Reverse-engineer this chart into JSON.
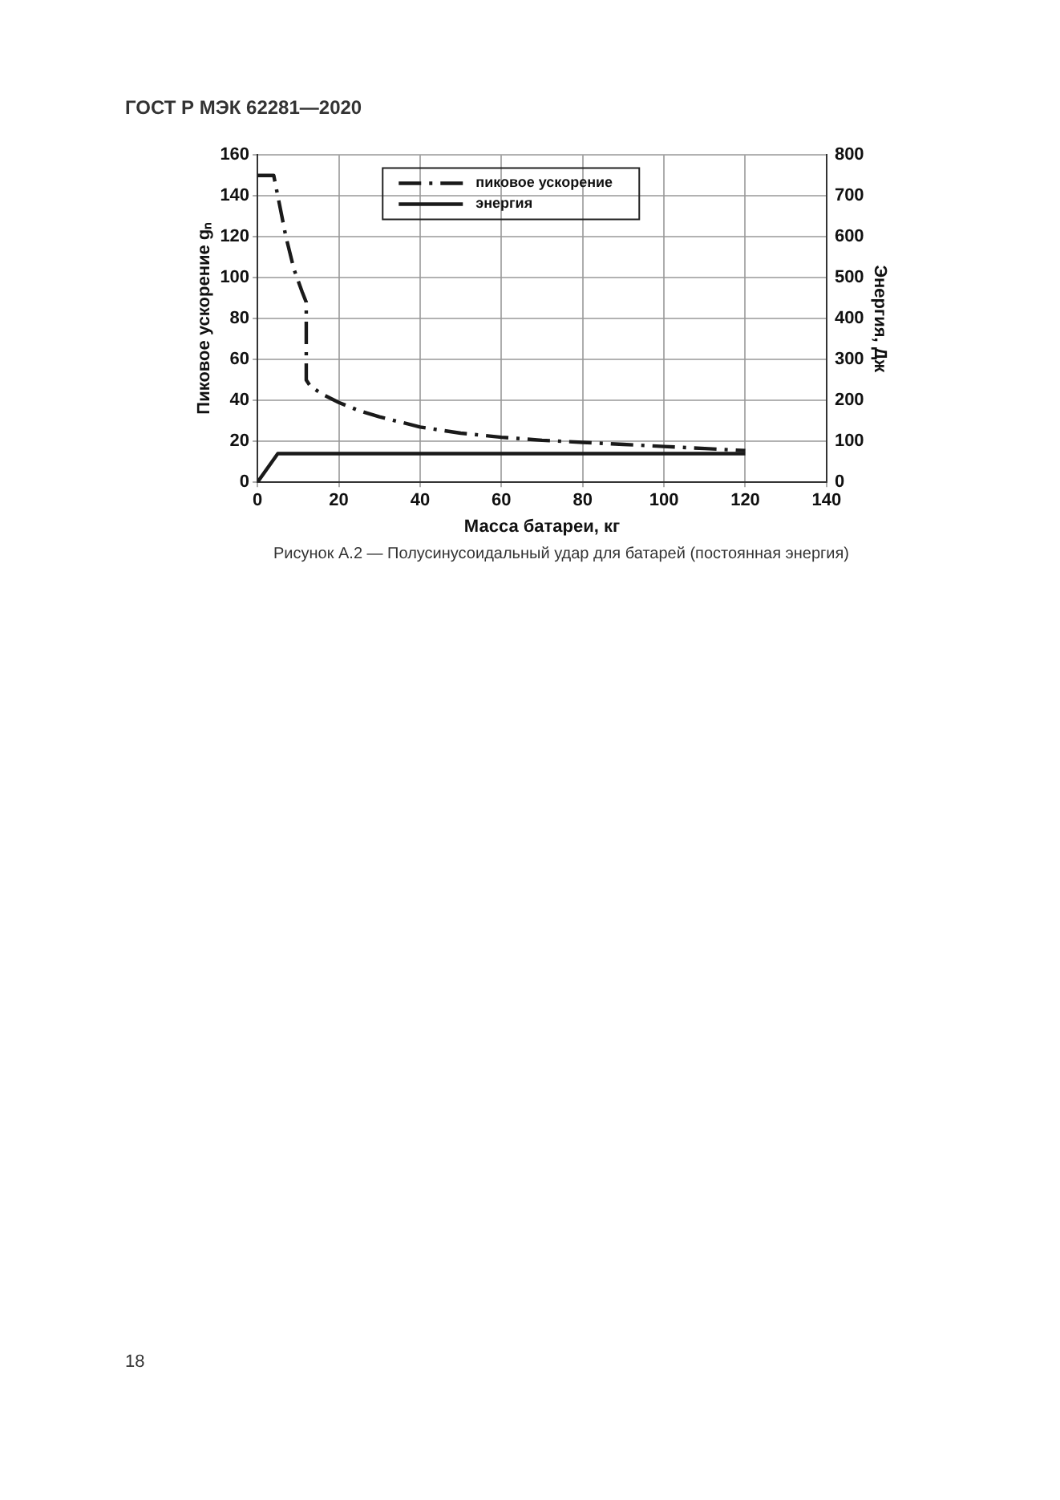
{
  "chart_data": {
    "type": "line",
    "xlabel": "Масса батареи, кг",
    "ylabel": "Пиковое ускорение gₙ",
    "y2label": "Энергия, Дж",
    "annotations": [
      "ГОСТ Р МЭК 62281—2020",
      "Рисунок А.2 — Полусинусоидальный удар для батарей (постоянная энергия)",
      "18"
    ],
    "xlim": [
      0,
      140
    ],
    "xticks": [
      0,
      20,
      40,
      60,
      80,
      100,
      120,
      140
    ],
    "ylim": [
      0,
      160
    ],
    "yticks": [
      0,
      20,
      40,
      60,
      80,
      100,
      120,
      140,
      160
    ],
    "y2lim": [
      0,
      800
    ],
    "y2ticks": [
      0,
      100,
      200,
      300,
      400,
      500,
      600,
      700,
      800
    ],
    "grid": true,
    "legend": "top",
    "marker": "none",
    "series": [
      {
        "name": "пиковое ускорение",
        "color": "#1a1a1a",
        "line_style": "dashed",
        "x": [
          0,
          4,
          5,
          7,
          9,
          11,
          12,
          12,
          13,
          16,
          20,
          25,
          30,
          40,
          50,
          60,
          70,
          80,
          90,
          100,
          110,
          120
        ],
        "values": [
          150,
          150,
          140,
          120,
          104,
          93,
          88,
          50,
          47,
          43,
          39,
          35,
          32,
          27,
          24,
          22,
          20.5,
          19.5,
          18.5,
          17.5,
          16.5,
          15.5
        ]
      },
      {
        "name": "энергия",
        "color": "#1a1a1a",
        "line_style": "solid",
        "axis": "y2",
        "x": [
          0,
          5,
          120
        ],
        "values": [
          0,
          70,
          70
        ]
      }
    ]
  }
}
